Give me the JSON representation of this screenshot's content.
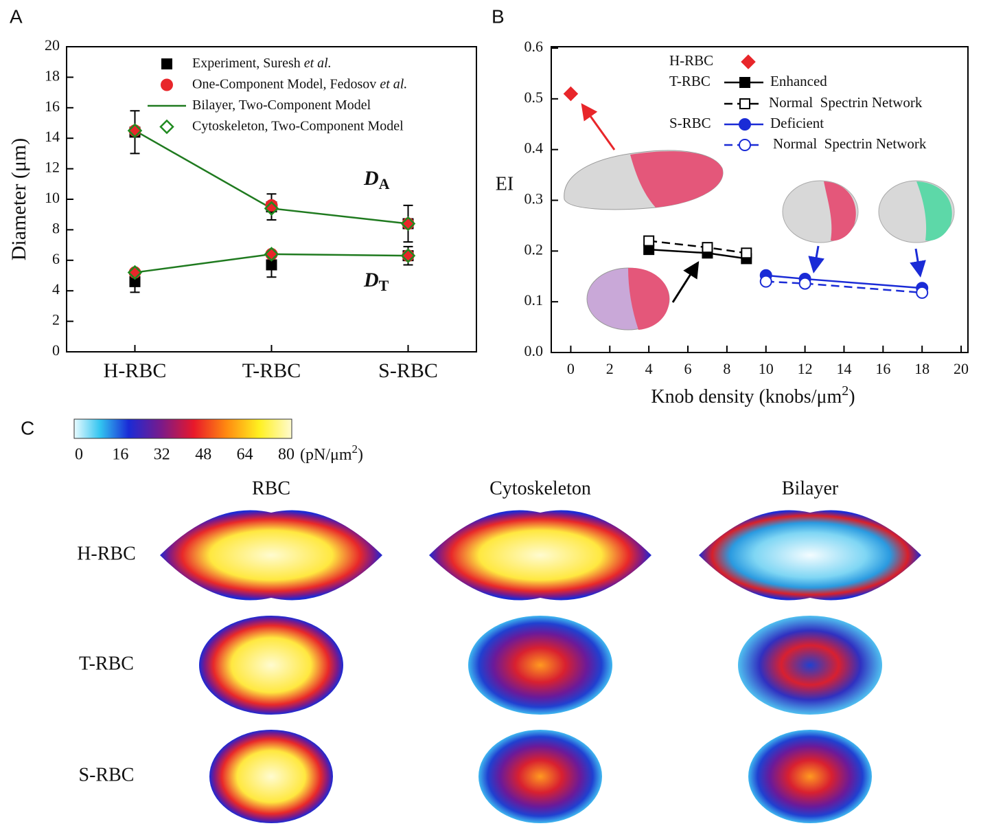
{
  "chart_data": [
    {
      "type": "errorbar",
      "panel": "A",
      "ylabel": "Diameter (μm)",
      "categories": [
        "H-RBC",
        "T-RBC",
        "S-RBC"
      ],
      "ylim": [
        0,
        20
      ],
      "yticks": [
        0,
        2,
        4,
        6,
        8,
        10,
        12,
        14,
        16,
        18,
        20
      ],
      "annotations": [
        {
          "text": "D",
          "sub": "A"
        },
        {
          "text": "D",
          "sub": "T"
        }
      ],
      "series": [
        {
          "name": "Experiment, Suresh",
          "name_italic": "et al.",
          "color": "#000000",
          "marker": "square",
          "values": [
            [
              14.4,
              9.5,
              8.4
            ],
            [
              4.6,
              5.7,
              6.3
            ]
          ],
          "errors": [
            [
              1.4,
              0.85,
              1.2
            ],
            [
              0.7,
              0.8,
              0.6
            ]
          ]
        },
        {
          "name": "One-Component Model, Fedosov",
          "name_italic": "et al.",
          "color": "#e8262a",
          "marker": "circle",
          "values": [
            [
              14.5,
              9.6,
              8.4
            ],
            [
              5.2,
              6.4,
              6.3
            ]
          ]
        },
        {
          "name": "Bilayer, Two-Component Model",
          "color": "#1f7a1f",
          "marker": "line",
          "values": [
            [
              14.5,
              9.4,
              8.4
            ],
            [
              5.2,
              6.4,
              6.3
            ]
          ]
        },
        {
          "name": "Cytoskeleton, Two-Component Model",
          "color": "#1f8a1f",
          "marker": "open-diamond",
          "values": [
            [
              14.5,
              9.4,
              8.4
            ],
            [
              5.2,
              6.4,
              6.3
            ]
          ]
        }
      ]
    },
    {
      "type": "line",
      "panel": "B",
      "ylabel": "EI",
      "xlabel": {
        "text": "Knob density (knobs/μm",
        "sup": "2",
        "tail": ")"
      },
      "xlim": [
        -1,
        20.35
      ],
      "xticks": [
        0,
        2,
        4,
        6,
        8,
        10,
        12,
        14,
        16,
        18,
        20
      ],
      "ylim": [
        0,
        0.6
      ],
      "yticks": [
        {
          "value": 0,
          "label": "0.0"
        },
        0.1,
        0.2,
        0.3,
        0.4,
        0.5,
        0.6
      ],
      "legend_group_labels": [
        "T-RBC",
        "S-RBC"
      ],
      "series": [
        {
          "name": "H-RBC",
          "color": "#e8262a",
          "marker": "diamond",
          "dash": false,
          "x": [
            0
          ],
          "values": [
            0.51
          ]
        },
        {
          "name": "Enhanced",
          "color": "#000000",
          "marker": "square",
          "dash": false,
          "x": [
            4,
            7,
            9
          ],
          "values": [
            0.203,
            0.196,
            0.185
          ]
        },
        {
          "name": "Normal  Spectrin Network",
          "color": "#000000",
          "marker": "open-square",
          "dash": true,
          "x": [
            4,
            7,
            9
          ],
          "values": [
            0.22,
            0.207,
            0.196
          ]
        },
        {
          "name": "Deficient",
          "color": "#1a2bd6",
          "marker": "circle",
          "dash": false,
          "x": [
            10,
            12,
            18
          ],
          "values": [
            0.152,
            0.145,
            0.127
          ]
        },
        {
          "name": "Normal  Spectrin Network",
          "color": "#1a2bd6",
          "marker": "open-circle",
          "dash": true,
          "x": [
            10,
            12,
            18
          ],
          "values": [
            0.14,
            0.136,
            0.118
          ]
        }
      ]
    }
  ],
  "panel_c": {
    "label": "C",
    "colorbar": {
      "lim": [
        0,
        80
      ],
      "ticks": [
        0,
        16,
        32,
        48,
        64,
        80
      ],
      "unit": "(pN/μm",
      "unit_sup": "2",
      "unit_end": ")"
    },
    "columns": [
      "RBC",
      "Cytoskeleton",
      "Bilayer"
    ],
    "rows": [
      "H-RBC",
      "T-RBC",
      "S-RBC"
    ]
  }
}
